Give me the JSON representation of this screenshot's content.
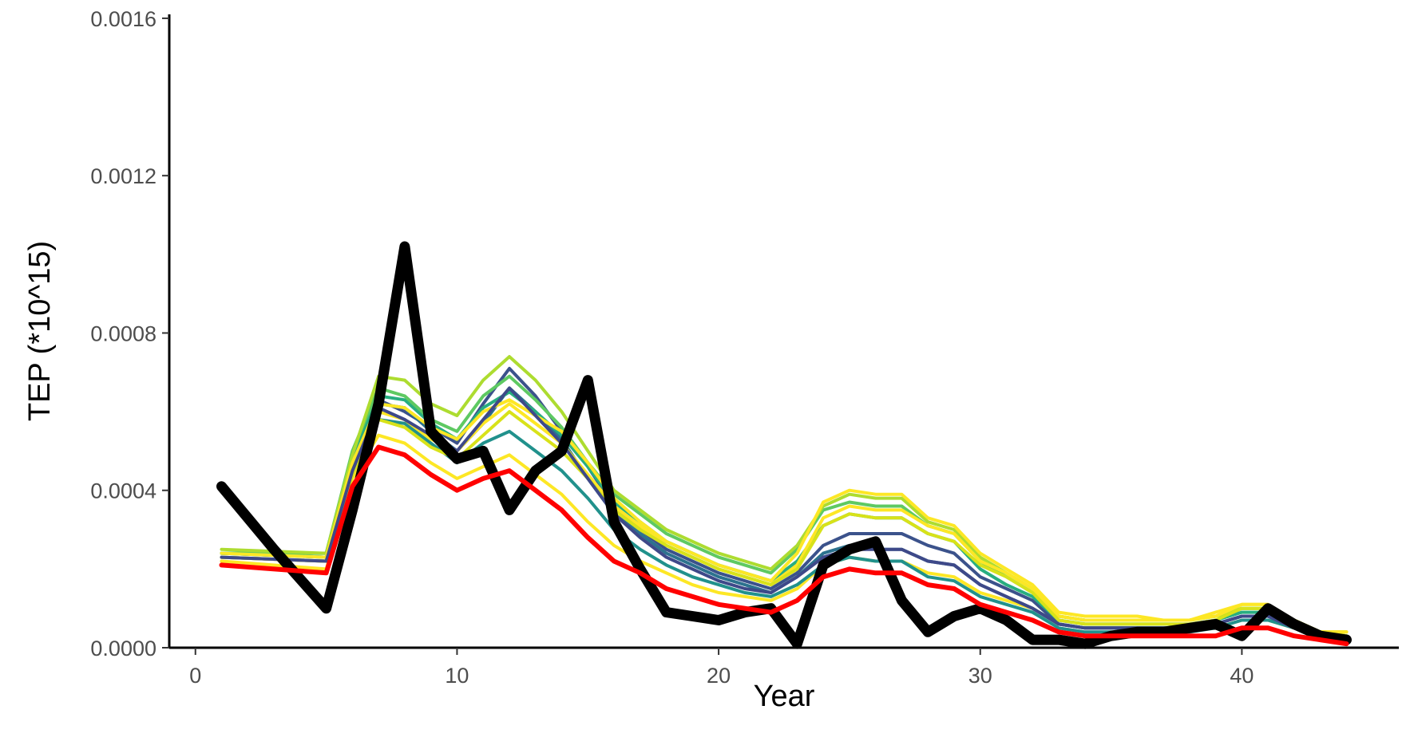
{
  "chart_data": {
    "type": "line",
    "xlabel": "Year",
    "ylabel": "TEP (*10^15)",
    "xlim": [
      -1,
      46
    ],
    "ylim": [
      0,
      0.00161
    ],
    "x_ticks": [
      0,
      10,
      20,
      30,
      40
    ],
    "x_tick_labels": [
      "0",
      "10",
      "20",
      "30",
      "40"
    ],
    "y_ticks": [
      0,
      0.0004,
      0.0008,
      0.0012,
      0.0016
    ],
    "y_tick_labels": [
      "0.0000",
      "0.0004",
      "0.0008",
      "0.0012",
      "0.0016"
    ],
    "grid": false,
    "legend": "none",
    "colors": {
      "observed": "#000000",
      "lower": "#ff0000",
      "ensemble_low": "#3b528b",
      "ensemble_mid": "#21918c",
      "ensemble_high": "#5ec962",
      "ensemble_top": "#fde725"
    },
    "x": [
      1,
      5,
      6,
      7,
      8,
      9,
      10,
      11,
      12,
      13,
      14,
      15,
      16,
      17,
      18,
      19,
      20,
      21,
      22,
      23,
      24,
      25,
      26,
      27,
      28,
      29,
      30,
      31,
      32,
      33,
      34,
      35,
      36,
      37,
      38,
      39,
      40,
      41,
      42,
      43,
      44
    ],
    "observed": {
      "x": [
        1,
        3,
        5,
        6,
        7,
        8,
        9,
        10,
        11,
        12,
        13,
        14,
        15,
        16,
        17,
        18,
        19,
        20,
        21,
        22,
        23,
        24,
        25,
        26,
        27,
        28,
        29,
        30,
        31,
        32,
        33,
        34,
        35,
        36,
        37,
        38,
        39,
        40,
        41,
        42,
        43,
        44
      ],
      "y": [
        0.00041,
        0.00025,
        0.0001,
        0.00035,
        0.00062,
        0.00102,
        0.00055,
        0.00048,
        0.0005,
        0.00035,
        0.00045,
        0.0005,
        0.00068,
        0.00032,
        0.0002,
        9e-05,
        8e-05,
        7e-05,
        9e-05,
        0.0001,
        1e-05,
        0.00021,
        0.00025,
        0.00027,
        0.00012,
        4e-05,
        8e-05,
        0.0001,
        7e-05,
        2e-05,
        2e-05,
        1e-05,
        3e-05,
        4e-05,
        4e-05,
        5e-05,
        6e-05,
        3e-05,
        0.0001,
        6e-05,
        3e-05,
        2e-05
      ]
    },
    "series": [
      {
        "color": "#ff0000",
        "y": [
          0.00021,
          0.00019,
          0.00041,
          0.00051,
          0.00049,
          0.00044,
          0.0004,
          0.00043,
          0.00045,
          0.0004,
          0.00035,
          0.00028,
          0.00022,
          0.00019,
          0.00015,
          0.00013,
          0.00011,
          0.0001,
          9e-05,
          0.00012,
          0.00018,
          0.0002,
          0.00019,
          0.00019,
          0.00016,
          0.00015,
          0.00011,
          9e-05,
          7e-05,
          4e-05,
          3e-05,
          3e-05,
          3e-05,
          3e-05,
          3e-05,
          3e-05,
          5e-05,
          5e-05,
          3e-05,
          2e-05,
          1e-05
        ]
      },
      {
        "color": "#fde725",
        "y": [
          0.00022,
          0.0002,
          0.00043,
          0.00054,
          0.00052,
          0.00047,
          0.00043,
          0.00046,
          0.00049,
          0.00044,
          0.00039,
          0.00032,
          0.00026,
          0.00022,
          0.00019,
          0.00016,
          0.00014,
          0.00013,
          0.00012,
          0.00015,
          0.00021,
          0.00023,
          0.00022,
          0.00022,
          0.00019,
          0.00018,
          0.00014,
          0.00012,
          0.0001,
          6e-05,
          5e-05,
          5e-05,
          5e-05,
          5e-05,
          5e-05,
          5e-05,
          7e-05,
          7e-05,
          5e-05,
          3e-05,
          3e-05
        ]
      },
      {
        "color": "#3b528b",
        "y": [
          0.00023,
          0.00022,
          0.00047,
          0.00063,
          0.0006,
          0.00056,
          0.00052,
          0.00062,
          0.00071,
          0.00064,
          0.00055,
          0.00046,
          0.00036,
          0.0003,
          0.00025,
          0.00022,
          0.00019,
          0.00017,
          0.00015,
          0.00019,
          0.00026,
          0.00029,
          0.00029,
          0.00029,
          0.00026,
          0.00024,
          0.00018,
          0.00015,
          0.00012,
          6e-05,
          5e-05,
          5e-05,
          5e-05,
          5e-05,
          5e-05,
          6e-05,
          8e-05,
          8e-05,
          5e-05,
          3e-05,
          2e-05
        ]
      },
      {
        "color": "#2c728e",
        "y": [
          0.00024,
          0.00023,
          0.00046,
          0.00062,
          0.00061,
          0.00055,
          0.0005,
          0.00057,
          0.00066,
          0.0006,
          0.00053,
          0.00043,
          0.00034,
          0.00029,
          0.00024,
          0.00021,
          0.00018,
          0.00016,
          0.00014,
          0.00018,
          0.00024,
          0.00026,
          0.00025,
          0.00025,
          0.00022,
          0.00021,
          0.00016,
          0.00013,
          0.0001,
          6e-05,
          5e-05,
          5e-05,
          5e-05,
          5e-05,
          5e-05,
          6e-05,
          8e-05,
          8e-05,
          5e-05,
          3e-05,
          2e-05
        ]
      },
      {
        "color": "#21918c",
        "y": [
          0.00024,
          0.00023,
          0.00046,
          0.00058,
          0.00057,
          0.00052,
          0.00047,
          0.00052,
          0.00055,
          0.0005,
          0.00045,
          0.00038,
          0.0003,
          0.00025,
          0.00021,
          0.00018,
          0.00016,
          0.00014,
          0.00013,
          0.00016,
          0.00021,
          0.00023,
          0.00022,
          0.00022,
          0.00018,
          0.00017,
          0.00013,
          0.00011,
          9e-05,
          5e-05,
          4e-05,
          4e-05,
          4e-05,
          4e-05,
          4e-05,
          5e-05,
          7e-05,
          7e-05,
          5e-05,
          3e-05,
          2e-05
        ]
      },
      {
        "color": "#28ae80",
        "y": [
          0.00024,
          0.00024,
          0.00049,
          0.00064,
          0.00063,
          0.00057,
          0.00053,
          0.00061,
          0.00065,
          0.0006,
          0.00054,
          0.00046,
          0.00037,
          0.00032,
          0.00027,
          0.00024,
          0.00021,
          0.00019,
          0.00017,
          0.00022,
          0.00031,
          0.00034,
          0.00033,
          0.00033,
          0.00029,
          0.00027,
          0.0002,
          0.00016,
          0.00013,
          7e-05,
          6e-05,
          6e-05,
          6e-05,
          6e-05,
          6e-05,
          7e-05,
          9e-05,
          9e-05,
          6e-05,
          4e-05,
          3e-05
        ]
      },
      {
        "color": "#5ec962",
        "y": [
          0.00024,
          0.00024,
          0.0005,
          0.00066,
          0.00064,
          0.00058,
          0.00055,
          0.00064,
          0.00069,
          0.00063,
          0.00056,
          0.00047,
          0.00039,
          0.00034,
          0.00029,
          0.00026,
          0.00023,
          0.00021,
          0.00019,
          0.00025,
          0.00035,
          0.00037,
          0.00036,
          0.00036,
          0.00031,
          0.00029,
          0.00022,
          0.00018,
          0.00014,
          8e-05,
          7e-05,
          7e-05,
          7e-05,
          7e-05,
          7e-05,
          8e-05,
          0.0001,
          0.0001,
          7e-05,
          4e-05,
          3e-05
        ]
      },
      {
        "color": "#addc30",
        "y": [
          0.00025,
          0.00024,
          0.00049,
          0.00069,
          0.00068,
          0.00062,
          0.00059,
          0.00068,
          0.00074,
          0.00068,
          0.0006,
          0.0005,
          0.0004,
          0.00035,
          0.0003,
          0.00027,
          0.00024,
          0.00022,
          0.0002,
          0.00026,
          0.00036,
          0.00039,
          0.00038,
          0.00038,
          0.00032,
          0.0003,
          0.00023,
          0.00019,
          0.00015,
          8e-05,
          7e-05,
          7e-05,
          7e-05,
          7e-05,
          7e-05,
          8e-05,
          0.0001,
          0.0001,
          7e-05,
          4e-05,
          4e-05
        ]
      },
      {
        "color": "#fde725",
        "y": [
          0.00023,
          0.00022,
          0.00045,
          0.0006,
          0.00058,
          0.00053,
          0.0005,
          0.00057,
          0.00062,
          0.00057,
          0.00052,
          0.00044,
          0.00036,
          0.00031,
          0.00026,
          0.00023,
          0.0002,
          0.00018,
          0.00016,
          0.00021,
          0.00033,
          0.00036,
          0.00035,
          0.00035,
          0.00031,
          0.00029,
          0.00022,
          0.00019,
          0.00015,
          8e-05,
          7e-05,
          7e-05,
          7e-05,
          7e-05,
          7e-05,
          8e-05,
          0.00011,
          0.00011,
          7e-05,
          4e-05,
          4e-05
        ]
      },
      {
        "color": "#fde725",
        "y": [
          0.00024,
          0.00023,
          0.00047,
          0.00062,
          0.00061,
          0.00056,
          0.00053,
          0.0006,
          0.00063,
          0.00059,
          0.00055,
          0.00047,
          0.00038,
          0.00032,
          0.00027,
          0.00024,
          0.00021,
          0.00019,
          0.00017,
          0.00024,
          0.00037,
          0.0004,
          0.00039,
          0.00039,
          0.00033,
          0.00031,
          0.00024,
          0.0002,
          0.00016,
          9e-05,
          8e-05,
          8e-05,
          8e-05,
          7e-05,
          7e-05,
          9e-05,
          0.00011,
          0.00011,
          7e-05,
          4e-05,
          4e-05
        ]
      },
      {
        "color": "#d8e219",
        "y": [
          0.00023,
          0.00022,
          0.00044,
          0.00058,
          0.00056,
          0.00051,
          0.00048,
          0.00054,
          0.0006,
          0.00055,
          0.0005,
          0.00043,
          0.00035,
          0.0003,
          0.00026,
          0.00023,
          0.0002,
          0.00018,
          0.00016,
          0.0002,
          0.00031,
          0.00034,
          0.00033,
          0.00033,
          0.00029,
          0.00027,
          0.00021,
          0.00018,
          0.00014,
          7e-05,
          6e-05,
          6e-05,
          6e-05,
          6e-05,
          6e-05,
          7e-05,
          0.0001,
          0.0001,
          6e-05,
          4e-05,
          3e-05
        ]
      },
      {
        "color": "#3e4989",
        "y": [
          0.00023,
          0.00022,
          0.00045,
          0.00061,
          0.00058,
          0.00054,
          0.0005,
          0.00058,
          0.00066,
          0.00059,
          0.00052,
          0.00043,
          0.00034,
          0.00028,
          0.00023,
          0.0002,
          0.00017,
          0.00015,
          0.00014,
          0.00018,
          0.00023,
          0.00025,
          0.00025,
          0.00025,
          0.00022,
          0.00021,
          0.00016,
          0.00013,
          0.0001,
          6e-05,
          5e-05,
          5e-05,
          5e-05,
          5e-05,
          5e-05,
          6e-05,
          8e-05,
          8e-05,
          5e-05,
          3e-05,
          2e-05
        ]
      }
    ]
  }
}
